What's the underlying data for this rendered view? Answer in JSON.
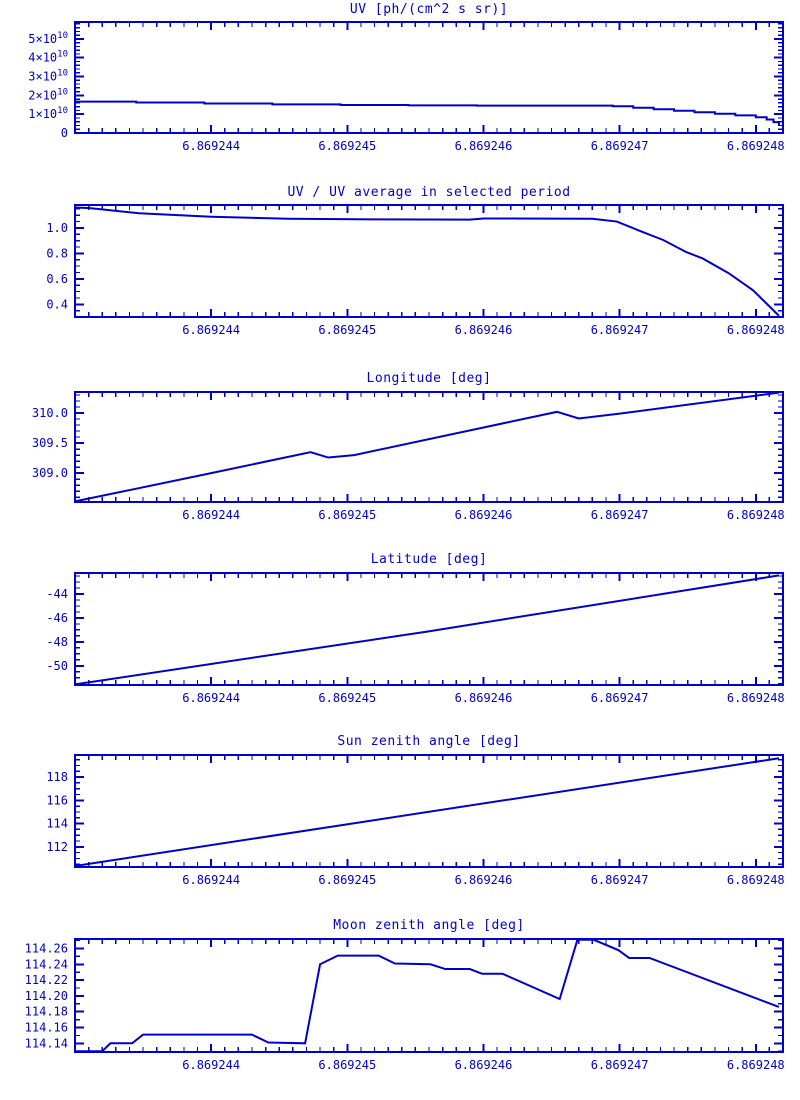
{
  "page": {
    "background": "#ffffff",
    "accent": "#0000CD"
  },
  "chart_data": [
    {
      "id": "uv",
      "type": "line",
      "title": "UV [ph/(cm^2 s sr)]",
      "x_ticks": [
        6.869244,
        6.869245,
        6.869246,
        6.869247,
        6.869248
      ],
      "x_tick_labels": [
        "6.869244",
        "6.869245",
        "6.869246",
        "6.869247",
        "6.869248"
      ],
      "xlim": [
        6.869243,
        6.8692482
      ],
      "x_minor": 10,
      "ylabel": "",
      "y_unit": "1e10 ph/(cm^2 s sr)",
      "ylim": [
        0,
        5.9
      ],
      "y_ticks": [
        0,
        1,
        2,
        3,
        4,
        5
      ],
      "y_tick_labels": [
        "0",
        "1×10^10",
        "2×10^10",
        "3×10^10",
        "4×10^10",
        "5×10^10"
      ],
      "y_minor": 5,
      "grid": false,
      "series": [
        {
          "name": "UV",
          "x": [
            6.869243,
            6.86924345,
            6.86924345,
            6.86924395,
            6.86924395,
            6.86924445,
            6.86924445,
            6.86924495,
            6.86924495,
            6.86924545,
            6.86924545,
            6.86924595,
            6.86924595,
            6.86924695,
            6.86924695,
            6.8692471,
            6.8692471,
            6.86924725,
            6.86924725,
            6.8692474,
            6.8692474,
            6.86924755,
            6.86924755,
            6.8692477,
            6.8692477,
            6.86924785,
            6.86924785,
            6.869248,
            6.869248,
            6.86924808,
            6.86924808,
            6.86924813,
            6.86924813,
            6.86924817,
            6.86924817
          ],
          "y": [
            1.67,
            1.67,
            1.62,
            1.62,
            1.57,
            1.57,
            1.52,
            1.52,
            1.49,
            1.49,
            1.47,
            1.47,
            1.455,
            1.455,
            1.42,
            1.42,
            1.34,
            1.34,
            1.26,
            1.26,
            1.18,
            1.18,
            1.1,
            1.1,
            1.02,
            1.02,
            0.94,
            0.94,
            0.84,
            0.84,
            0.72,
            0.72,
            0.58,
            0.58,
            0.42
          ]
        }
      ]
    },
    {
      "id": "uv-ratio",
      "type": "line",
      "title": "UV / UV average in selected period",
      "x_ticks": [
        6.869244,
        6.869245,
        6.869246,
        6.869247,
        6.869248
      ],
      "x_tick_labels": [
        "6.869244",
        "6.869245",
        "6.869246",
        "6.869247",
        "6.869248"
      ],
      "xlim": [
        6.869243,
        6.8692482
      ],
      "x_minor": 10,
      "ylim": [
        0.3,
        1.18
      ],
      "y_ticks": [
        0.4,
        0.6,
        0.8,
        1.0
      ],
      "y_tick_labels": [
        "0.4",
        "0.6",
        "0.8",
        "1.0"
      ],
      "y_minor": 4,
      "grid": false,
      "series": [
        {
          "name": "UV ratio",
          "x": [
            6.869243,
            6.86924311,
            6.86924347,
            6.869244,
            6.86924457,
            6.8692452,
            6.8692459,
            6.869246,
            6.8692468,
            6.86924698,
            6.86924714,
            6.86924732,
            6.86924749,
            6.86924761,
            6.8692478,
            6.86924798,
            6.86924817
          ],
          "y": [
            1.16,
            1.155,
            1.115,
            1.088,
            1.072,
            1.067,
            1.065,
            1.074,
            1.072,
            1.05,
            0.98,
            0.905,
            0.81,
            0.76,
            0.645,
            0.51,
            0.31
          ]
        }
      ]
    },
    {
      "id": "longitude",
      "type": "line",
      "title": "Longitude [deg]",
      "x_ticks": [
        6.869244,
        6.869245,
        6.869246,
        6.869247,
        6.869248
      ],
      "x_tick_labels": [
        "6.869244",
        "6.869245",
        "6.869246",
        "6.869247",
        "6.869248"
      ],
      "xlim": [
        6.869243,
        6.8692482
      ],
      "x_minor": 10,
      "ylim": [
        308.52,
        310.35
      ],
      "y_ticks": [
        309.0,
        309.5,
        310.0
      ],
      "y_tick_labels": [
        "309.0",
        "309.5",
        "310.0"
      ],
      "y_minor": 5,
      "grid": false,
      "series": [
        {
          "name": "Longitude",
          "x": [
            6.869243,
            6.869244,
            6.86924473,
            6.86924486,
            6.86924505,
            6.86924654,
            6.8692467,
            6.869247,
            6.86924817
          ],
          "y": [
            308.53,
            309.0,
            309.35,
            309.26,
            309.3,
            310.02,
            309.91,
            309.99,
            310.34
          ]
        }
      ]
    },
    {
      "id": "latitude",
      "type": "line",
      "title": "Latitude [deg]",
      "x_ticks": [
        6.869244,
        6.869245,
        6.869246,
        6.869247,
        6.869248
      ],
      "x_tick_labels": [
        "6.869244",
        "6.869245",
        "6.869246",
        "6.869247",
        "6.869248"
      ],
      "xlim": [
        6.869243,
        6.8692482
      ],
      "x_minor": 10,
      "ylim": [
        -51.6,
        -42.25
      ],
      "y_ticks": [
        -50,
        -48,
        -46,
        -44
      ],
      "y_tick_labels": [
        "-50",
        "-48",
        "-46",
        "-44"
      ],
      "y_minor": 4,
      "grid": false,
      "series": [
        {
          "name": "Latitude",
          "x": [
            6.869243,
            6.86924558,
            6.86924817
          ],
          "y": [
            -51.55,
            -47.15,
            -42.45
          ]
        }
      ]
    },
    {
      "id": "sun-zenith",
      "type": "line",
      "title": "Sun zenith angle [deg]",
      "x_ticks": [
        6.869244,
        6.869245,
        6.869246,
        6.869247,
        6.869248
      ],
      "x_tick_labels": [
        "6.869244",
        "6.869245",
        "6.869246",
        "6.869247",
        "6.869248"
      ],
      "xlim": [
        6.869243,
        6.8692482
      ],
      "x_minor": 10,
      "ylim": [
        110.26,
        119.9
      ],
      "y_ticks": [
        112,
        114,
        116,
        118
      ],
      "y_tick_labels": [
        "112",
        "114",
        "116",
        "118"
      ],
      "y_minor": 4,
      "grid": false,
      "series": [
        {
          "name": "Sun zenith angle",
          "x": [
            6.869243,
            6.86924817
          ],
          "y": [
            110.35,
            119.62
          ]
        }
      ]
    },
    {
      "id": "moon-zenith",
      "type": "line",
      "title": "Moon zenith angle [deg]",
      "x_ticks": [
        6.869244,
        6.869245,
        6.869246,
        6.869247,
        6.869248
      ],
      "x_tick_labels": [
        "6.869244",
        "6.869245",
        "6.869246",
        "6.869247",
        "6.869248"
      ],
      "xlim": [
        6.869243,
        6.8692482
      ],
      "x_minor": 10,
      "ylim": [
        114.129,
        114.272
      ],
      "y_ticks": [
        114.14,
        114.16,
        114.18,
        114.2,
        114.22,
        114.24,
        114.26
      ],
      "y_tick_labels": [
        "114.14",
        "114.16",
        "114.18",
        "114.20",
        "114.22",
        "114.24",
        "114.26"
      ],
      "y_minor": 2,
      "grid": false,
      "series": [
        {
          "name": "Moon zenith angle",
          "x": [
            6.869243,
            6.8692432,
            6.86924326,
            6.86924342,
            6.8692435,
            6.8692443,
            6.86924442,
            6.86924469,
            6.8692448,
            6.86924493,
            6.86924523,
            6.86924535,
            6.86924561,
            6.86924572,
            6.8692459,
            6.86924599,
            6.86924614,
            6.86924656,
            6.86924669,
            6.86924681,
            6.86924699,
            6.86924707,
            6.86924722,
            6.86924817
          ],
          "y": [
            114.13,
            114.13,
            114.14,
            114.14,
            114.151,
            114.151,
            114.141,
            114.14,
            114.24,
            114.251,
            114.251,
            114.241,
            114.24,
            114.234,
            114.234,
            114.228,
            114.228,
            114.196,
            114.271,
            114.271,
            114.258,
            114.248,
            114.248,
            114.186
          ]
        }
      ]
    }
  ]
}
